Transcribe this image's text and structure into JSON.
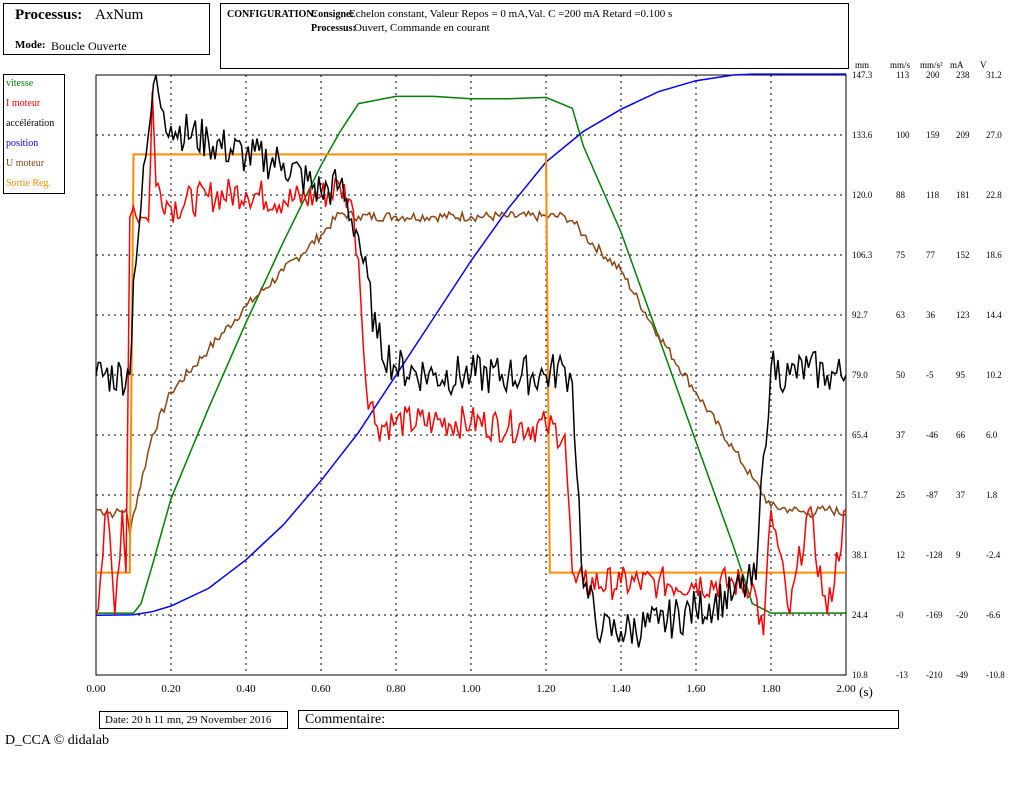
{
  "header": {
    "process_label": "Processus:",
    "process_value": "AxNum",
    "mode_label": "Mode:",
    "mode_value": "Boucle Ouverte"
  },
  "config": {
    "label": "CONFIGURATION:",
    "consigne_label": "Consigne:",
    "consigne_value": "Echelon constant, Valeur Repos = 0 mA,Val. C =200 mA Retard =0.100 s",
    "processus_label": "Processus:",
    "processus_value": "Ouvert, Commande en courant"
  },
  "legend": [
    {
      "label": "vitesse",
      "color": "#008000"
    },
    {
      "label": "I moteur",
      "color": "#ff0000"
    },
    {
      "label": "accélération",
      "color": "#000000"
    },
    {
      "label": "position",
      "color": "#0000ff"
    },
    {
      "label": "U moteur",
      "color": "#8b4513"
    },
    {
      "label": "Sortie Reg.",
      "color": "#ff8c00"
    }
  ],
  "chart_data": {
    "type": "line",
    "x_ticks": [
      "0.00",
      "0.20",
      "0.40",
      "0.60",
      "0.80",
      "1.00",
      "1.20",
      "1.40",
      "1.60",
      "1.80",
      "2.00"
    ],
    "x_unit": "(s)",
    "xlim": [
      0,
      2.0
    ],
    "grid": true,
    "right_axes": [
      {
        "unit": "mm",
        "ticks": [
          "147.3",
          "133.6",
          "120.0",
          "106.3",
          "92.7",
          "79.0",
          "65.4",
          "51.7",
          "38.1",
          "24.4",
          "10.8"
        ]
      },
      {
        "unit": "mm/s",
        "ticks": [
          "113",
          "100",
          "88",
          "75",
          "63",
          "50",
          "37",
          "25",
          "12",
          "-0",
          "-13"
        ]
      },
      {
        "unit": "mm/s²",
        "ticks": [
          "200",
          "159",
          "118",
          "77",
          "36",
          "-5",
          "-46",
          "-87",
          "-128",
          "-169",
          "-210"
        ]
      },
      {
        "unit": "mA",
        "ticks": [
          "238",
          "209",
          "181",
          "152",
          "123",
          "95",
          "66",
          "37",
          "9",
          "-20",
          "-49"
        ]
      },
      {
        "unit": "V",
        "ticks": [
          "31.2",
          "27.0",
          "22.8",
          "18.6",
          "14.4",
          "10.2",
          "6.0",
          "1.8",
          "-2.4",
          "-6.6",
          "-10.8"
        ]
      }
    ],
    "series": [
      {
        "name": "position",
        "unit": "mm",
        "color": "#0000ff",
        "x": [
          0,
          0.1,
          0.15,
          0.2,
          0.3,
          0.4,
          0.5,
          0.6,
          0.7,
          0.8,
          0.9,
          1.0,
          1.1,
          1.2,
          1.3,
          1.4,
          1.5,
          1.6,
          1.7,
          1.75,
          1.8,
          1.9,
          2.0
        ],
        "y": [
          24.4,
          24.5,
          25.2,
          26.5,
          30.5,
          37,
          45,
          55,
          66,
          79,
          92,
          105,
          117,
          127.5,
          134.5,
          139.5,
          143.5,
          146,
          147.3,
          147.5,
          147.5,
          147.5,
          147.5
        ]
      },
      {
        "name": "vitesse",
        "unit": "mm/s",
        "color": "#008000",
        "x": [
          0,
          0.1,
          0.12,
          0.15,
          0.2,
          0.3,
          0.4,
          0.5,
          0.6,
          0.65,
          0.7,
          0.8,
          0.9,
          1.0,
          1.1,
          1.2,
          1.27,
          1.3,
          1.4,
          1.5,
          1.6,
          1.7,
          1.75,
          1.8,
          1.9,
          2.0
        ],
        "y": [
          0,
          0,
          2,
          10,
          24,
          43,
          61,
          78,
          94,
          101,
          107,
          108.5,
          108.5,
          108,
          108,
          108.3,
          106,
          98,
          80,
          58,
          36,
          14,
          2,
          0,
          0,
          0
        ]
      },
      {
        "name": "I moteur",
        "unit": "mA",
        "color": "#ff0000",
        "x": [
          0,
          0.03,
          0.05,
          0.07,
          0.08,
          0.09,
          0.1,
          0.12,
          0.14,
          0.15,
          0.16,
          0.2,
          0.3,
          0.4,
          0.5,
          0.6,
          0.65,
          0.68,
          0.7,
          0.72,
          0.75,
          0.8,
          0.9,
          1.0,
          1.1,
          1.2,
          1.25,
          1.27,
          1.28,
          1.3,
          1.4,
          1.5,
          1.6,
          1.7,
          1.75,
          1.78,
          1.8,
          1.85,
          1.9,
          1.95,
          2.0
        ],
        "y": [
          -20,
          30,
          -20,
          30,
          0,
          170,
          175,
          170,
          168,
          230,
          185,
          175,
          180,
          182,
          178,
          180,
          185,
          178,
          150,
          90,
          70,
          72,
          72,
          72,
          70,
          70,
          66,
          0,
          -5,
          -5,
          -5,
          -5,
          -5,
          -5,
          -5,
          -30,
          30,
          -20,
          30,
          -20,
          30
        ]
      },
      {
        "name": "accélération",
        "unit": "mm/s²",
        "color": "#000000",
        "x": [
          0,
          0.09,
          0.1,
          0.12,
          0.14,
          0.16,
          0.18,
          0.2,
          0.3,
          0.4,
          0.5,
          0.6,
          0.65,
          0.7,
          0.75,
          0.8,
          0.9,
          1.0,
          1.1,
          1.2,
          1.25,
          1.27,
          1.3,
          1.35,
          1.4,
          1.5,
          1.6,
          1.7,
          1.76,
          1.78,
          1.8,
          1.85,
          1.9,
          1.95,
          2.0
        ],
        "y": [
          -5,
          -5,
          60,
          110,
          160,
          200,
          175,
          165,
          155,
          145,
          140,
          120,
          125,
          90,
          20,
          0,
          -5,
          -5,
          -5,
          -5,
          0,
          -10,
          -150,
          -180,
          -180,
          -175,
          -165,
          -155,
          -145,
          -60,
          0,
          -5,
          0,
          -5,
          -5
        ]
      },
      {
        "name": "U moteur",
        "unit": "V",
        "color": "#8b4513",
        "x": [
          0,
          0.05,
          0.08,
          0.09,
          0.1,
          0.15,
          0.2,
          0.3,
          0.4,
          0.5,
          0.6,
          0.65,
          0.7,
          0.8,
          0.9,
          1.0,
          1.1,
          1.2,
          1.25,
          1.27,
          1.3,
          1.4,
          1.5,
          1.6,
          1.7,
          1.75,
          1.8,
          1.85,
          1.9,
          1.95,
          2.0
        ],
        "y": [
          0.8,
          0.5,
          0.8,
          -1,
          0.5,
          6,
          9,
          12,
          15,
          17.5,
          20,
          21.5,
          21.3,
          21.3,
          21.3,
          21.3,
          21.3,
          21.3,
          21.3,
          21.0,
          20,
          17.5,
          13,
          9,
          5,
          3,
          1,
          0.8,
          0.5,
          0.8,
          0.5
        ]
      },
      {
        "name": "Sortie Reg.",
        "unit": "mA",
        "color": "#ff8c00",
        "x": [
          0,
          0.09,
          0.09,
          0.1,
          0.1,
          1.2,
          1.2,
          1.21,
          1.21,
          2.0
        ],
        "y": [
          0,
          0,
          0,
          200,
          200,
          200,
          200,
          0,
          0,
          0
        ]
      }
    ]
  },
  "footer": {
    "date": "Date: 20 h 11 mn, 29 November 2016",
    "comment_label": "Commentaire:",
    "copyright": "D_CCA © didalab"
  }
}
